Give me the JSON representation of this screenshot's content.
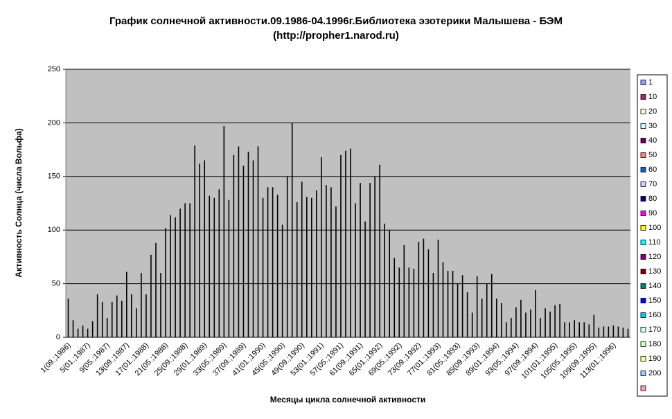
{
  "chart_data": {
    "type": "bar",
    "title": "График солнечной активности.09.1986-04.1996г.Библиотека эзотерики Малышева - БЭМ",
    "subtitle": "(http://propher1.narod.ru)",
    "x_label": "Месяцы цикла солнечной активности",
    "y_label": "Активность Солнца (числа Вольфа)",
    "categories": [
      "1(09.;1986)",
      null,
      null,
      null,
      "5(01.;1987)",
      null,
      null,
      null,
      "9(05.;1987)",
      null,
      null,
      null,
      "13(09.;1987)",
      null,
      null,
      null,
      "17(01.;1988)",
      null,
      null,
      null,
      "21(05.;1988)",
      null,
      null,
      null,
      "25(09.;1988)",
      null,
      null,
      null,
      "29(01.;1989)",
      null,
      null,
      null,
      "33(05.;1989)",
      null,
      null,
      null,
      "37(09.;1989)",
      null,
      null,
      null,
      "41(01.;1990)",
      null,
      null,
      null,
      "45(05.;1990)",
      null,
      null,
      null,
      "49(09.;1990)",
      null,
      null,
      null,
      "53(01.;1991)",
      null,
      null,
      null,
      "57(05.;1991)",
      null,
      null,
      null,
      "61(09.;1991)",
      null,
      null,
      null,
      "65(01.;1992)",
      null,
      null,
      null,
      "69(05.;1992)",
      null,
      null,
      null,
      "73(09.;1992)",
      null,
      null,
      null,
      "77(01.;1993)",
      null,
      null,
      null,
      "81(05.;1993)",
      null,
      null,
      null,
      "85(09.;1993)",
      null,
      null,
      null,
      "89(01.;1994)",
      null,
      null,
      null,
      "93(05.;1994)",
      null,
      null,
      null,
      "97(09.;1994)",
      null,
      null,
      null,
      "101(01.;1995)",
      null,
      null,
      null,
      "105(05.;1995)",
      null,
      null,
      null,
      "109(09.;1995)",
      null,
      null,
      null,
      "113(01.;1996)",
      null,
      null,
      null
    ],
    "values": [
      36,
      16,
      8,
      11,
      8,
      15,
      40,
      33,
      18,
      33,
      39,
      34,
      61,
      40,
      27,
      60,
      40,
      77,
      88,
      60,
      102,
      114,
      112,
      120,
      125,
      125,
      179,
      162,
      165,
      132,
      130,
      138,
      197,
      128,
      170,
      178,
      160,
      173,
      165,
      178,
      130,
      140,
      140,
      133,
      105,
      150,
      200,
      126,
      145,
      131,
      130,
      137,
      168,
      142,
      140,
      122,
      170,
      174,
      176,
      125,
      144,
      108,
      144,
      150,
      161,
      106,
      100,
      74,
      65,
      86,
      65,
      64,
      89,
      92,
      82,
      60,
      91,
      70,
      62,
      62,
      50,
      58,
      42,
      23,
      57,
      36,
      50,
      59,
      36,
      32,
      14,
      18,
      28,
      35,
      23,
      26,
      44,
      18,
      27,
      24,
      30,
      31,
      14,
      14,
      16,
      14,
      14,
      12,
      21,
      9,
      10,
      10,
      11,
      10,
      9,
      8
    ],
    "color": "#000000",
    "plot_background": "#c0c0c0",
    "ylim": [
      0,
      250
    ],
    "yticks": [
      0,
      50,
      100,
      150,
      200,
      250
    ],
    "grid": true,
    "legend_position": "right",
    "legend": [
      {
        "name": "1",
        "color": "#9999ff"
      },
      {
        "name": "10",
        "color": "#993366"
      },
      {
        "name": "20",
        "color": "#ffffcc"
      },
      {
        "name": "30",
        "color": "#ccffff"
      },
      {
        "name": "40",
        "color": "#660066"
      },
      {
        "name": "50",
        "color": "#ff8080"
      },
      {
        "name": "60",
        "color": "#0066cc"
      },
      {
        "name": "70",
        "color": "#ccccff"
      },
      {
        "name": "80",
        "color": "#000080"
      },
      {
        "name": "90",
        "color": "#ff00ff"
      },
      {
        "name": "100",
        "color": "#ffff00"
      },
      {
        "name": "110",
        "color": "#00ffff"
      },
      {
        "name": "120",
        "color": "#800080"
      },
      {
        "name": "130",
        "color": "#800000"
      },
      {
        "name": "140",
        "color": "#008080"
      },
      {
        "name": "150",
        "color": "#0000ff"
      },
      {
        "name": "160",
        "color": "#00ccff"
      },
      {
        "name": "170",
        "color": "#ccffff"
      },
      {
        "name": "180",
        "color": "#ccffcc"
      },
      {
        "name": "190",
        "color": "#ffff99"
      },
      {
        "name": "200",
        "color": "#99ccff"
      }
    ]
  }
}
